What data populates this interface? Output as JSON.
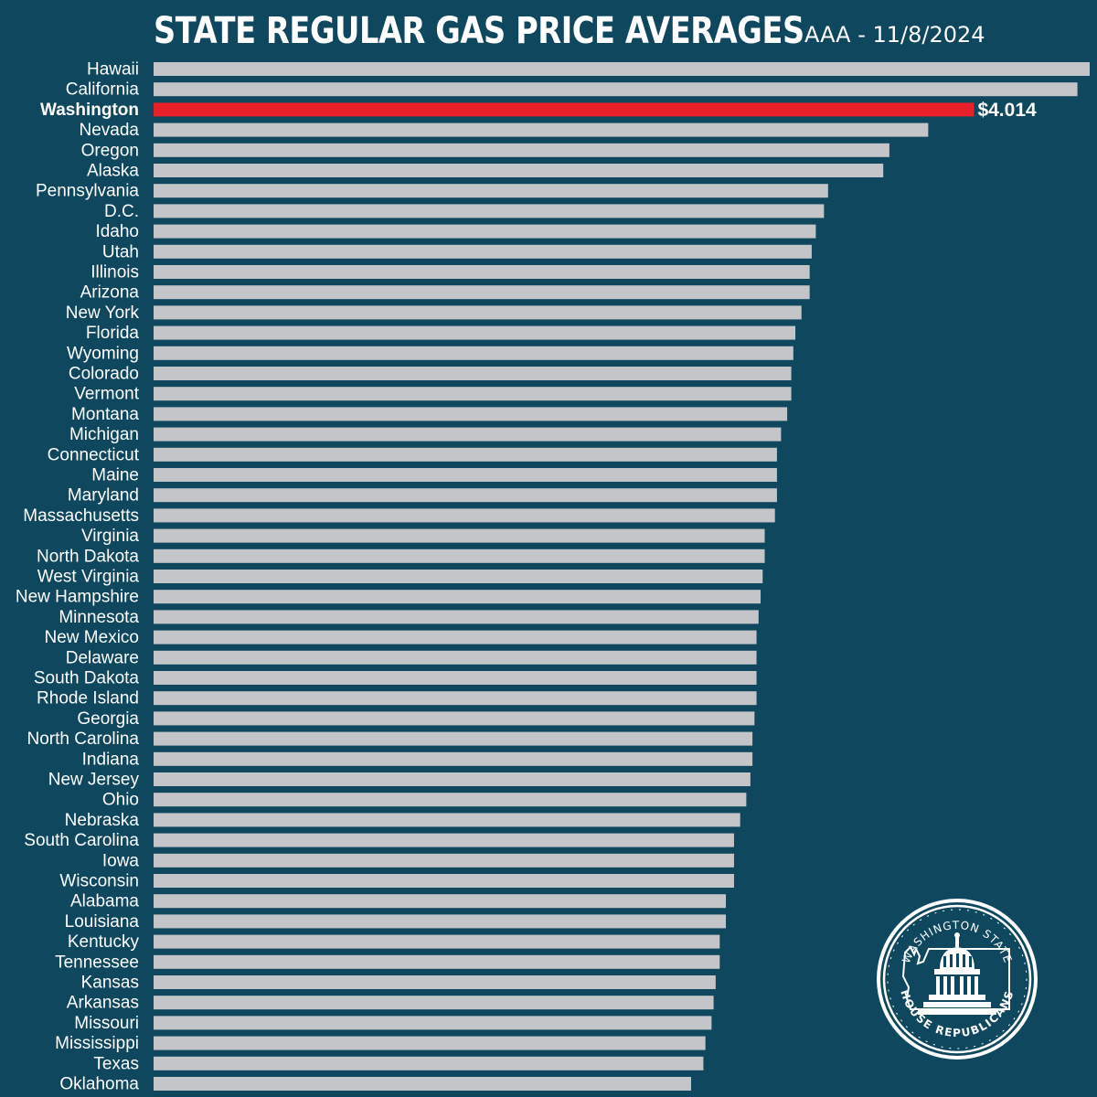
{
  "header": {
    "title": "STATE REGULAR GAS PRICE AVERAGES",
    "subtitle": "AAA - 11/8/2024"
  },
  "logo": {
    "text_top": "WASHINGTON STATE",
    "text_bottom": "HOUSE REPUBLICANS"
  },
  "colors": {
    "background": "#0f475e",
    "bar": "#c4c5c9",
    "highlight": "#e8202a",
    "text": "#ffffff"
  },
  "chart_data": {
    "type": "bar",
    "orientation": "horizontal",
    "title": "STATE REGULAR GAS PRICE AVERAGES",
    "subtitle": "AAA - 11/8/2024",
    "grid": false,
    "xlim": [
      0,
      4.58
    ],
    "highlight": {
      "category": "Washington",
      "label": "$4.014"
    },
    "categories": [
      "Hawaii",
      "California",
      "Washington",
      "Nevada",
      "Oregon",
      "Alaska",
      "Pennsylvania",
      "D.C.",
      "Idaho",
      "Utah",
      "Illinois",
      "Arizona",
      "New York",
      "Florida",
      "Wyoming",
      "Colorado",
      "Vermont",
      "Montana",
      "Michigan",
      "Connecticut",
      "Maine",
      "Maryland",
      "Massachusetts",
      "Virginia",
      "North Dakota",
      "West Virginia",
      "New Hampshire",
      "Minnesota",
      "New Mexico",
      "Delaware",
      "South Dakota",
      "Rhode Island",
      "Georgia",
      "North Carolina",
      "Indiana",
      "New Jersey",
      "Ohio",
      "Nebraska",
      "South Carolina",
      "Iowa",
      "Wisconsin",
      "Alabama",
      "Louisiana",
      "Kentucky",
      "Tennessee",
      "Kansas",
      "Arkansas",
      "Missouri",
      "Mississippi",
      "Texas",
      "Oklahoma"
    ],
    "values": [
      4.58,
      4.52,
      4.014,
      3.79,
      3.6,
      3.57,
      3.3,
      3.28,
      3.24,
      3.22,
      3.21,
      3.21,
      3.17,
      3.14,
      3.13,
      3.12,
      3.12,
      3.1,
      3.07,
      3.05,
      3.05,
      3.05,
      3.04,
      2.99,
      2.99,
      2.98,
      2.97,
      2.96,
      2.95,
      2.95,
      2.95,
      2.95,
      2.94,
      2.93,
      2.93,
      2.92,
      2.9,
      2.87,
      2.84,
      2.84,
      2.84,
      2.8,
      2.8,
      2.77,
      2.77,
      2.75,
      2.74,
      2.73,
      2.7,
      2.69,
      2.63
    ]
  }
}
